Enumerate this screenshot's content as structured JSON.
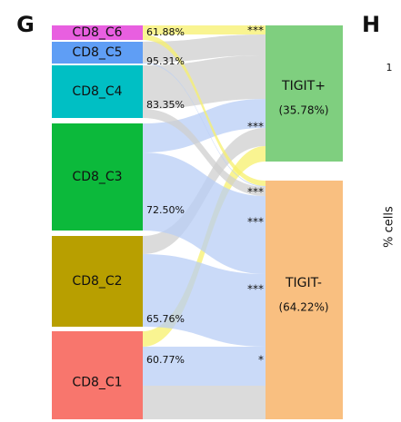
{
  "panel_left": "G",
  "panel_right": "H",
  "left_nodes": [
    {
      "label": "CD8_C6",
      "percent": "61.88%",
      "stars": "***"
    },
    {
      "label": "CD8_C5",
      "percent": "95.31%",
      "stars": "***"
    },
    {
      "label": "CD8_C4",
      "percent": "83.35%",
      "stars": "***"
    },
    {
      "label": "CD8_C3",
      "percent": "72.50%",
      "stars": "***"
    },
    {
      "label": "CD8_C2",
      "percent": "65.76%",
      "stars": "***"
    },
    {
      "label": "CD8_C1",
      "percent": "60.77%",
      "stars": "*"
    }
  ],
  "right_nodes": [
    {
      "label": "TIGIT+",
      "percent": "(35.78%)"
    },
    {
      "label": "TIGIT-",
      "percent": "(64.22%)"
    }
  ],
  "right_axis_tick": "1",
  "right_axis_label": "% cells"
}
